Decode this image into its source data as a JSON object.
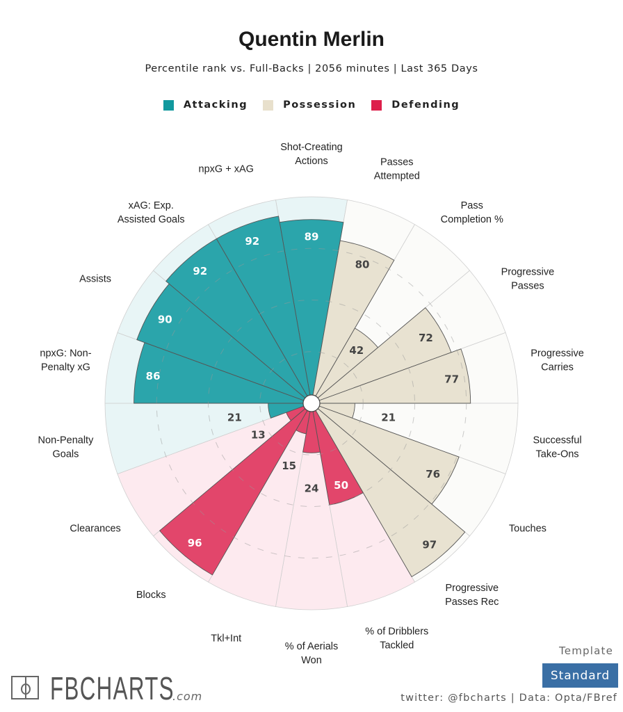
{
  "header": {
    "title": "Quentin Merlin",
    "subtitle": "Percentile rank vs. Full-Backs | 2056 minutes | Last 365 Days"
  },
  "colors": {
    "Attacking": {
      "bar": "#2ba5ab",
      "bg": "#e8f5f6"
    },
    "Possession": {
      "bar": "#e8e2d1",
      "bg": "#fbfbf9"
    },
    "Defending": {
      "bar": "#e2466b",
      "bg": "#fdeaef"
    }
  },
  "chart_data": {
    "type": "pizza",
    "title": "Quentin Merlin",
    "value_range": [
      0,
      100
    ],
    "gridlines": [
      25,
      50,
      75
    ],
    "legend": [
      "Attacking",
      "Possession",
      "Defending"
    ],
    "legend_position": "top",
    "slices": [
      {
        "label": "Shot-Creating\nActions",
        "value": 89,
        "group": "Attacking"
      },
      {
        "label": "Passes\nAttempted",
        "value": 80,
        "group": "Possession"
      },
      {
        "label": "Pass\nCompletion %",
        "value": 42,
        "group": "Possession"
      },
      {
        "label": "Progressive\nPasses",
        "value": 72,
        "group": "Possession"
      },
      {
        "label": "Progressive\nCarries",
        "value": 77,
        "group": "Possession"
      },
      {
        "label": "Successful\nTake-Ons",
        "value": 21,
        "group": "Possession"
      },
      {
        "label": "Touches",
        "value": 76,
        "group": "Possession"
      },
      {
        "label": "Progressive\nPasses Rec",
        "value": 97,
        "group": "Possession"
      },
      {
        "label": "% of Dribblers\nTackled",
        "value": 50,
        "group": "Defending"
      },
      {
        "label": "% of Aerials\nWon",
        "value": 24,
        "group": "Defending"
      },
      {
        "label": "Tkl+Int",
        "value": 15,
        "group": "Defending"
      },
      {
        "label": "Blocks",
        "value": 96,
        "group": "Defending"
      },
      {
        "label": "Clearances",
        "value": 13,
        "group": "Defending"
      },
      {
        "label": "Non-Penalty\nGoals",
        "value": 21,
        "group": "Attacking"
      },
      {
        "label": "npxG: Non-\nPenalty xG",
        "value": 86,
        "group": "Attacking"
      },
      {
        "label": "Assists",
        "value": 90,
        "group": "Attacking"
      },
      {
        "label": "xAG: Exp.\nAssisted Goals",
        "value": 92,
        "group": "Attacking"
      },
      {
        "label": "npxG + xAG",
        "value": 92,
        "group": "Attacking"
      }
    ]
  },
  "footer": {
    "logo_text": "FBCHARTS",
    "logo_suffix": ".com",
    "template_label": "Template",
    "template_value": "Standard",
    "credit": "twitter: @fbcharts | Data: Opta/FBref"
  }
}
